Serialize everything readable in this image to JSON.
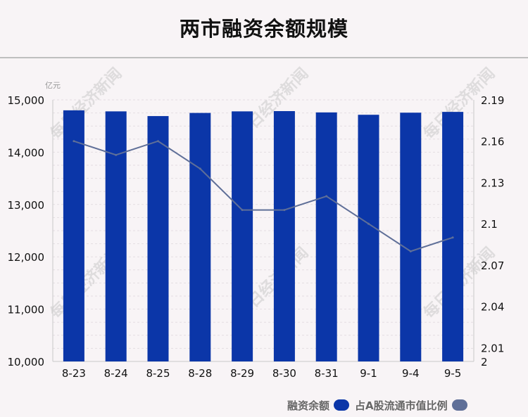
{
  "page": {
    "title": "两市融资余额规模",
    "watermark": "每日经济新闻"
  },
  "colors": {
    "bar": "#0b36a8",
    "line": "#5f6f98",
    "background": "#f8f4f6"
  },
  "legend": [
    {
      "label": "融资余额",
      "color": "#0b36a8"
    },
    {
      "label": "占A股流通市值比例",
      "color": "#5f6f98"
    }
  ],
  "chart_data": {
    "type": "bar",
    "categories": [
      "8-23",
      "8-24",
      "8-25",
      "8-28",
      "8-29",
      "8-30",
      "8-31",
      "9-1",
      "9-4",
      "9-5"
    ],
    "series": [
      {
        "name": "融资余额",
        "type": "bar",
        "axis": "left",
        "values": [
          14800,
          14780,
          14690,
          14750,
          14780,
          14785,
          14760,
          14715,
          14755,
          14770
        ]
      },
      {
        "name": "占A股流通市值比例",
        "type": "line",
        "axis": "right",
        "values": [
          2.16,
          2.15,
          2.16,
          2.14,
          2.11,
          2.11,
          2.12,
          2.1,
          2.08,
          2.09
        ]
      }
    ],
    "left_axis": {
      "unit": "亿元",
      "ylim": [
        10000,
        15000
      ],
      "ticks": [
        10000,
        11000,
        12000,
        13000,
        14000,
        15000
      ],
      "tick_labels": [
        "10,000",
        "11,000",
        "12,000",
        "13,000",
        "14,000",
        "15,000"
      ]
    },
    "right_axis": {
      "ylim": [
        2,
        2.19
      ],
      "ticks": [
        2,
        2.01,
        2.04,
        2.07,
        2.1,
        2.13,
        2.16,
        2.19
      ],
      "tick_labels": [
        "2",
        "2.01",
        "2.04",
        "2.07",
        "2.1",
        "2.13",
        "2.16",
        "2.19"
      ]
    },
    "grid": true,
    "legend_position": "bottom-right"
  }
}
